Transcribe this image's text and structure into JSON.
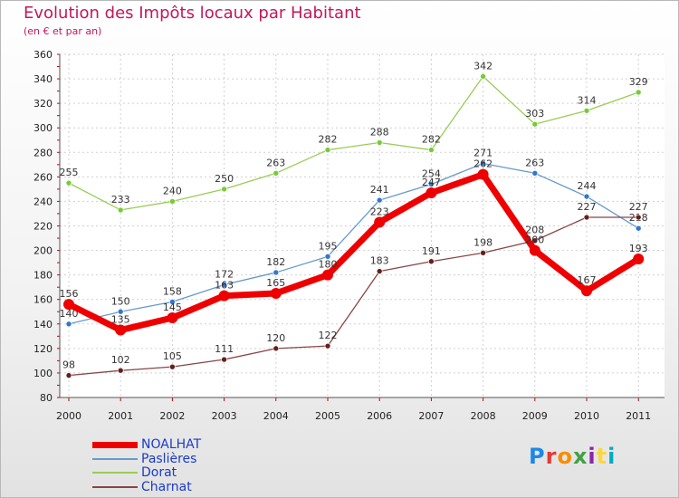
{
  "header": {
    "title": "Evolution des Impôts locaux par Habitant",
    "subtitle": "(en € et par an)"
  },
  "logo": {
    "text": "Proxiti",
    "colors": [
      "#1e88e5",
      "#e53935",
      "#fb8c00",
      "#43a047",
      "#8e24aa",
      "#fdd835",
      "#00acc1"
    ]
  },
  "chart_data": {
    "type": "line",
    "title": "Evolution des Impôts locaux par Habitant",
    "subtitle": "(en € et par an)",
    "xlabel": "",
    "ylabel": "",
    "categories": [
      "2000",
      "2001",
      "2002",
      "2003",
      "2004",
      "2005",
      "2006",
      "2007",
      "2008",
      "2009",
      "2010",
      "2011"
    ],
    "yticks": [
      80,
      100,
      120,
      140,
      160,
      180,
      200,
      220,
      240,
      260,
      280,
      300,
      320,
      340,
      360
    ],
    "ylim": [
      80,
      360
    ],
    "grid": true,
    "legend_position": "bottom-left",
    "series": [
      {
        "name": "Dorat",
        "color": "#99cc55",
        "marker": "#77cc33",
        "width": "thin",
        "values": [
          255,
          233,
          240,
          250,
          263,
          282,
          288,
          282,
          342,
          303,
          314,
          329
        ],
        "labels": [
          "255",
          "233",
          "240",
          "250",
          "263",
          "282",
          "288",
          "282",
          "342",
          "303",
          "314",
          "329"
        ]
      },
      {
        "name": "Paslières",
        "color": "#6699cc",
        "marker": "#3377cc",
        "width": "thin",
        "values": [
          140,
          150,
          158,
          172,
          182,
          195,
          241,
          254,
          271,
          263,
          244,
          218
        ],
        "labels": [
          "140",
          "150",
          "158",
          "172",
          "182",
          "195",
          "241",
          "254",
          "271",
          "263",
          "244",
          "218"
        ]
      },
      {
        "name": "Charnat",
        "color": "#884444",
        "marker": "#661e1e",
        "width": "thin",
        "values": [
          98,
          102,
          105,
          111,
          120,
          122,
          183,
          191,
          198,
          208,
          227,
          227
        ],
        "labels": [
          "98",
          "102",
          "105",
          "111",
          "120",
          "122",
          "183",
          "191",
          "198",
          "208",
          "227",
          "227"
        ]
      },
      {
        "name": "NOALHAT",
        "color": "#ee0000",
        "marker": "#ee0000",
        "width": "thick",
        "values": [
          156,
          135,
          145,
          163,
          165,
          180,
          223,
          247,
          262,
          200,
          167,
          193
        ],
        "labels": [
          "156",
          "135",
          "145",
          "163",
          "165",
          "180",
          "223",
          "247",
          "262",
          "200",
          "167",
          "193"
        ]
      }
    ],
    "legend": [
      "NOALHAT",
      "Paslières",
      "Dorat",
      "Charnat"
    ]
  }
}
